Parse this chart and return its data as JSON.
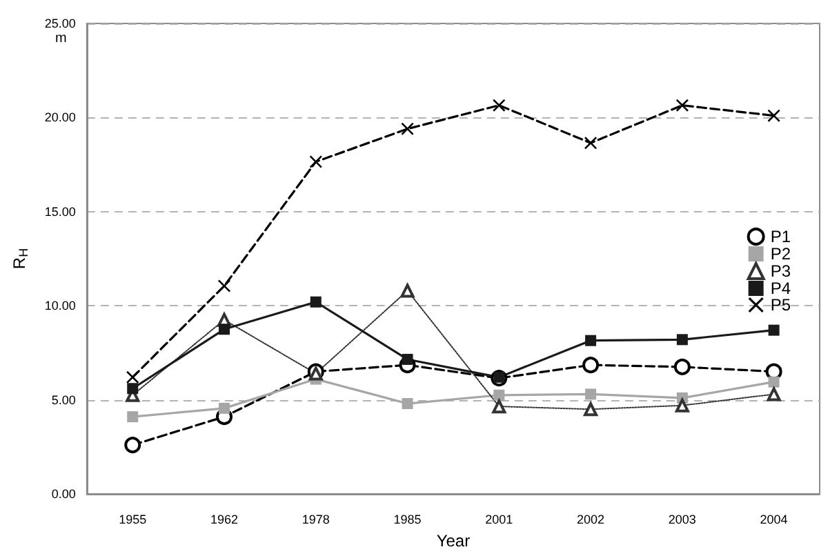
{
  "chart_data": {
    "type": "line",
    "xlabel": "Year",
    "ylabel": "R$_{H}$",
    "annotations": [
      "m"
    ],
    "categories": [
      "1955",
      "1962",
      "1978",
      "1985",
      "2001",
      "2002",
      "2003",
      "2004"
    ],
    "ylim": [
      0,
      25
    ],
    "yticks": [
      {
        "value": 0,
        "label": "0.00"
      },
      {
        "value": 5,
        "label": "5.00"
      },
      {
        "value": 10,
        "label": "10.00"
      },
      {
        "value": 15,
        "label": "15.00"
      },
      {
        "value": 20,
        "label": "20.00"
      },
      {
        "value": 25,
        "label": "25.00"
      }
    ],
    "grid": "y",
    "legend": "right",
    "series": [
      {
        "name": "P1",
        "color": "#000000",
        "marker": "circle",
        "line_style": "dashed",
        "values": [
          2.6,
          4.1,
          6.5,
          6.85,
          6.15,
          6.85,
          6.75,
          6.5
        ]
      },
      {
        "name": "P2",
        "color": "#a6a6a6",
        "marker": "square",
        "line_style": "solid",
        "values": [
          4.1,
          4.55,
          6.1,
          4.8,
          5.25,
          5.3,
          5.1,
          5.95
        ]
      },
      {
        "name": "P3",
        "color": "#333333",
        "marker": "triangle",
        "line_style": "dotted",
        "values": [
          5.25,
          9.25,
          6.4,
          10.8,
          4.65,
          4.5,
          4.7,
          5.3
        ]
      },
      {
        "name": "P4",
        "color": "#1a1a1a",
        "marker": "square",
        "line_style": "solid",
        "values": [
          5.6,
          8.75,
          10.2,
          7.15,
          6.2,
          8.15,
          8.2,
          8.7
        ]
      },
      {
        "name": "P5",
        "color": "#000000",
        "marker": "cross",
        "line_style": "dashed",
        "values": [
          6.2,
          11.05,
          17.65,
          19.4,
          20.65,
          18.65,
          20.65,
          20.1
        ]
      }
    ]
  }
}
